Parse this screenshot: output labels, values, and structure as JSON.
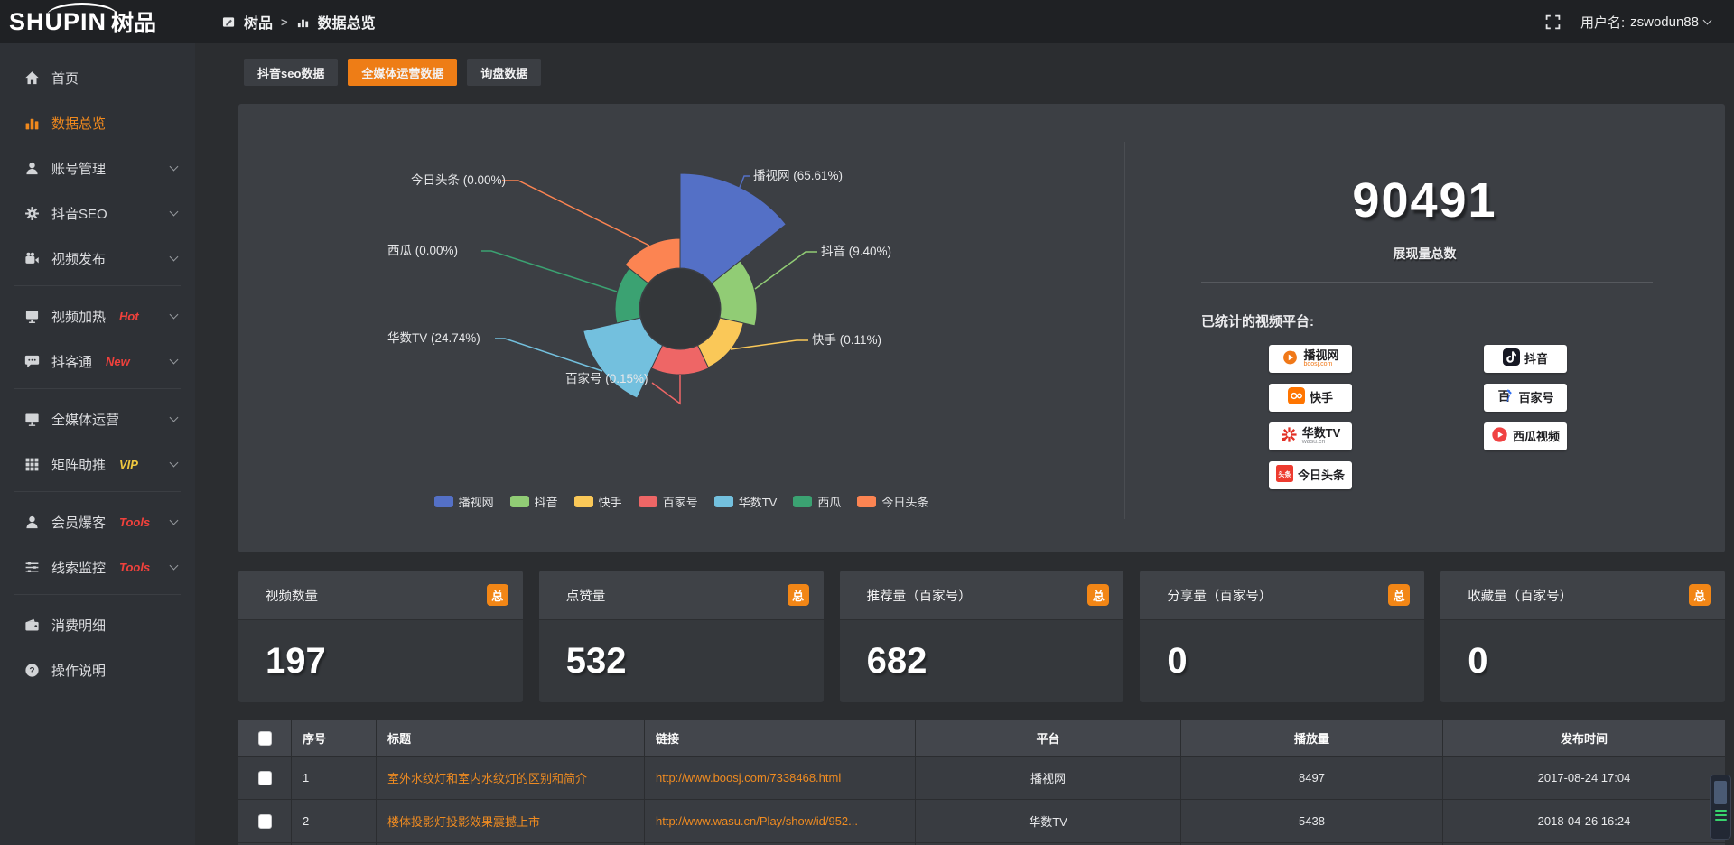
{
  "colors": {
    "accent": "#ee7d16",
    "link": "#ef8b21",
    "hot_badge": "#f0413c",
    "vip_badge": "#efc83f",
    "panel": "#3c3f44"
  },
  "header": {
    "logo_en": "SHUPIN",
    "logo_cn": "树品",
    "breadcrumb_root": "树品",
    "breadcrumb_sep": ">",
    "breadcrumb_current": "数据总览",
    "user_label": "用户名:",
    "username": "zswodun88"
  },
  "sidebar": {
    "items": [
      {
        "type": "item",
        "label": "首页",
        "icon": "home"
      },
      {
        "type": "item",
        "label": "数据总览",
        "icon": "chart",
        "active": true
      },
      {
        "type": "item",
        "label": "账号管理",
        "icon": "user",
        "chevron": true
      },
      {
        "type": "item",
        "label": "抖音SEO",
        "icon": "gear",
        "chevron": true
      },
      {
        "type": "item",
        "label": "视频发布",
        "icon": "video",
        "chevron": true
      },
      {
        "type": "divider"
      },
      {
        "type": "item",
        "label": "视频加热",
        "icon": "screen",
        "badge": "Hot",
        "badge_color": "#f0413c",
        "chevron": true
      },
      {
        "type": "item",
        "label": "抖客通",
        "icon": "chat",
        "badge": "New",
        "badge_color": "#f0413c",
        "chevron": true
      },
      {
        "type": "divider"
      },
      {
        "type": "item",
        "label": "全媒体运营",
        "icon": "monitor",
        "chevron": true
      },
      {
        "type": "item",
        "label": "矩阵助推",
        "icon": "grid",
        "badge": "VIP",
        "badge_color": "#efc83f",
        "chevron": true
      },
      {
        "type": "divider"
      },
      {
        "type": "item",
        "label": "会员爆客",
        "icon": "user2",
        "badge": "Tools",
        "badge_color": "#f0413c",
        "chevron": true
      },
      {
        "type": "item",
        "label": "线索监控",
        "icon": "sliders",
        "badge": "Tools",
        "badge_color": "#f0413c",
        "chevron": true
      },
      {
        "type": "divider"
      },
      {
        "type": "item",
        "label": "消费明细",
        "icon": "wallet"
      },
      {
        "type": "item",
        "label": "操作说明",
        "icon": "help"
      }
    ]
  },
  "tabs": [
    {
      "label": "抖音seo数据",
      "active": false
    },
    {
      "label": "全媒体运营数据",
      "active": true
    },
    {
      "label": "询盘数据",
      "active": false
    }
  ],
  "chart_data": {
    "type": "pie",
    "variant": "nightingale-rose",
    "categories": [
      "播视网",
      "抖音",
      "快手",
      "百家号",
      "华数TV",
      "西瓜",
      "今日头条"
    ],
    "values_percent": [
      65.61,
      9.4,
      0.11,
      0.15,
      24.74,
      0.0,
      0.0
    ],
    "colors": [
      "#5470c6",
      "#91cc75",
      "#fac858",
      "#ee6666",
      "#73c0de",
      "#3ba272",
      "#fc8452"
    ],
    "label_format": "{name} ({value}%)",
    "legend": [
      "播视网",
      "抖音",
      "快手",
      "百家号",
      "华数TV",
      "西瓜",
      "今日头条"
    ],
    "legend_position": "bottom"
  },
  "summary": {
    "total_value": "90491",
    "total_label": "展现量总数",
    "platforms_title": "已统计的视频平台:",
    "platforms": [
      {
        "name": "播视网",
        "sub": "boosj.com",
        "sub_color": "#f07818",
        "logo": "boosj"
      },
      {
        "name": "抖音",
        "logo": "douyin"
      },
      {
        "name": "快手",
        "logo": "kuaishou"
      },
      {
        "name": "百家号",
        "logo": "baijiahao"
      },
      {
        "name": "华数TV",
        "sub": "wasu.cn",
        "sub_color": "#8a8d92",
        "logo": "wasu"
      },
      {
        "name": "西瓜视频",
        "logo": "xigua"
      },
      {
        "name": "今日头条",
        "logo": "toutiao"
      }
    ]
  },
  "stat_cards": [
    {
      "title": "视频数量",
      "badge": "总",
      "value": "197"
    },
    {
      "title": "点赞量",
      "badge": "总",
      "value": "532"
    },
    {
      "title": "推荐量（百家号）",
      "badge": "总",
      "value": "682"
    },
    {
      "title": "分享量（百家号）",
      "badge": "总",
      "value": "0"
    },
    {
      "title": "收藏量（百家号）",
      "badge": "总",
      "value": "0"
    }
  ],
  "table": {
    "headers": [
      "序号",
      "标题",
      "链接",
      "平台",
      "播放量",
      "发布时间"
    ],
    "rows": [
      {
        "num": "1",
        "title": "室外水纹灯和室内水纹灯的区别和简介",
        "link": "http://www.boosj.com/7338468.html",
        "platform": "播视网",
        "plays": "8497",
        "time": "2017-08-24 17:04",
        "selected": false
      },
      {
        "num": "2",
        "title": "楼体投影灯投影效果震撼上市",
        "link": "http://www.wasu.cn/Play/show/id/952...",
        "platform": "华数TV",
        "plays": "5438",
        "time": "2018-04-26 16:24",
        "selected": false
      }
    ]
  }
}
